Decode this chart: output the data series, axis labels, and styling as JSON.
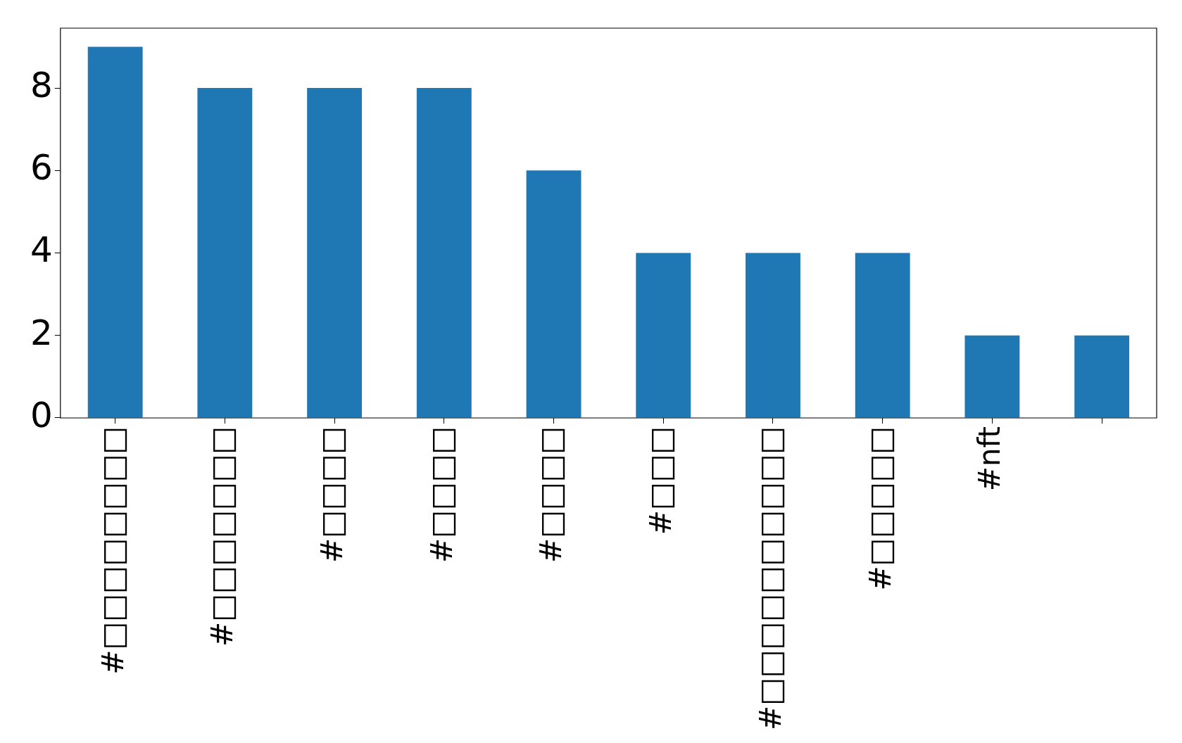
{
  "chart_data": {
    "type": "bar",
    "categories": [
      "#□□□□□□□□",
      "#□□□□□□□",
      "#□□□□",
      "#□□□□",
      "#□□□□",
      "#□□□",
      "#□□□□□□□□□□",
      "#□□□□□",
      "#nft",
      null
    ],
    "values": [
      9,
      8,
      8,
      8,
      6,
      4,
      4,
      4,
      2,
      2
    ],
    "color": "#1f77b4",
    "ylim": [
      0,
      9.45
    ],
    "yticks": [
      0,
      2,
      4,
      6,
      8
    ],
    "grid": false,
    "legend": false
  }
}
